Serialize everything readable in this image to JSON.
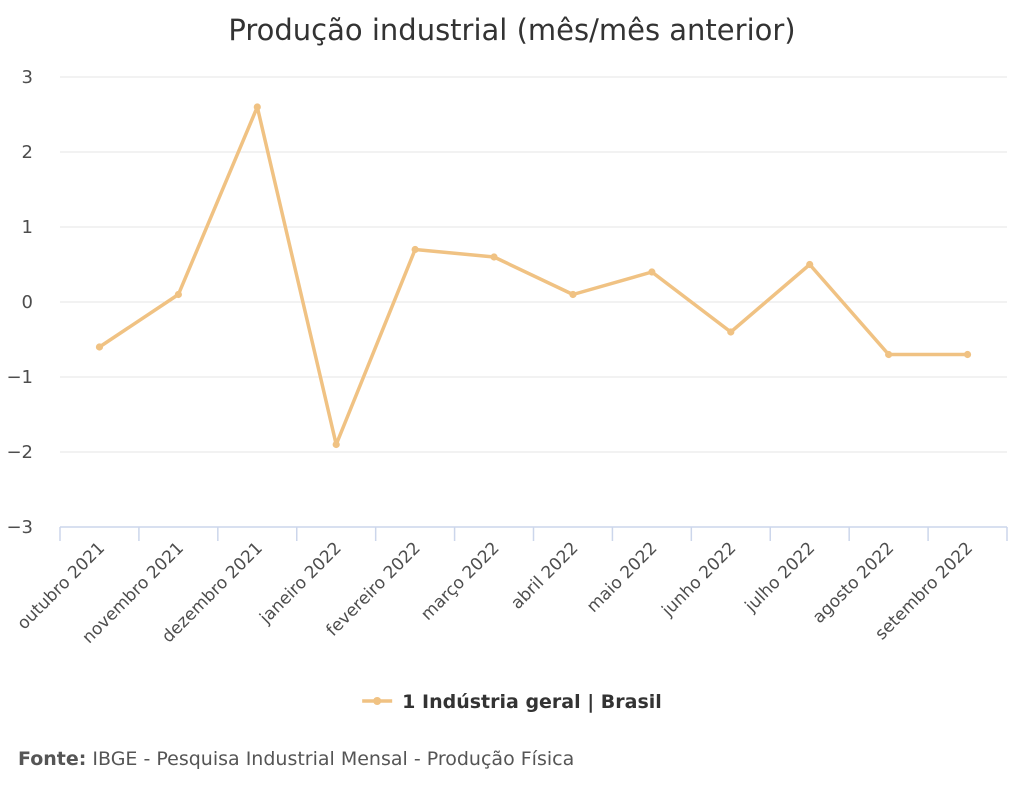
{
  "chart_data": {
    "type": "line",
    "title": "Produção industrial (mês/mês anterior)",
    "xlabel": "",
    "ylabel": "",
    "ylim": [
      -3,
      3
    ],
    "y_ticks": [
      "3",
      "2",
      "1",
      "0",
      "−1",
      "−2",
      "−3"
    ],
    "grid": true,
    "legend_position": "bottom",
    "categories": [
      "outubro 2021",
      "novembro 2021",
      "dezembro 2021",
      "janeiro 2022",
      "fevereiro 2022",
      "março 2022",
      "abril 2022",
      "maio 2022",
      "junho 2022",
      "julho 2022",
      "agosto 2022",
      "setembro 2022"
    ],
    "series": [
      {
        "name": "1 Indústria geral | Brasil",
        "color": "#f0c283",
        "values": [
          -0.6,
          0.1,
          2.6,
          -1.9,
          0.7,
          0.6,
          0.1,
          0.4,
          -0.4,
          0.5,
          -0.7,
          -0.7
        ]
      }
    ]
  },
  "source": {
    "label": "Fonte:",
    "text": "IBGE - Pesquisa Industrial Mensal - Produção Física"
  },
  "colors": {
    "grid": "#e6e6e6",
    "axis": "#ccd6eb",
    "line": "#f0c283"
  }
}
